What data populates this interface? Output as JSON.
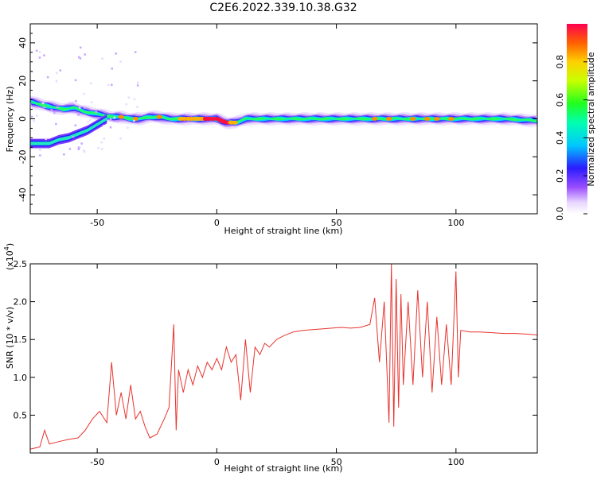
{
  "title": "C2E6.2022.339.10.38.G32",
  "chart_data": [
    {
      "type": "heatmap",
      "xlabel": "Height of straight line (km)",
      "ylabel": "Frequency (Hz)",
      "xlim": [
        -78,
        134
      ],
      "ylim": [
        -50,
        50
      ],
      "xticks": [
        -50,
        0,
        50,
        100
      ],
      "yticks": [
        -40,
        -20,
        0,
        20,
        40
      ],
      "colorbar": {
        "label": "Normalized spectral amplitude",
        "range": [
          0,
          1
        ],
        "ticks": [
          "0.0",
          "0.2",
          "0.4",
          "0.6",
          "0.8"
        ]
      },
      "ridge": {
        "x": [
          -78,
          -72,
          -68,
          -64,
          -60,
          -56,
          -52,
          -48,
          -44,
          -40,
          -36,
          -32,
          -28,
          -24,
          -20,
          -16,
          -12,
          -8,
          -4,
          0,
          4,
          8,
          12,
          16,
          20,
          30,
          40,
          50,
          60,
          65,
          70,
          75,
          80,
          85,
          90,
          95,
          100,
          110,
          120,
          134
        ],
        "y": [
          9,
          7,
          6,
          5,
          6,
          4,
          3,
          2,
          1,
          1,
          0,
          0,
          1,
          1,
          0,
          0,
          0,
          0,
          0,
          0,
          -2,
          -2,
          0,
          0,
          0,
          0,
          0,
          0,
          0,
          0,
          0,
          0,
          0,
          0,
          0,
          0,
          0,
          0,
          0,
          -1
        ]
      },
      "lower_branch": {
        "x": [
          -78,
          -70,
          -66,
          -62,
          -58,
          -54,
          -50,
          -46
        ],
        "y": [
          -13,
          -13,
          -11,
          -10,
          -8,
          -6,
          -3,
          0
        ]
      }
    },
    {
      "type": "line",
      "xlabel": "Height of straight line (km)",
      "ylabel": "SNR (10 * v/v)",
      "y_scale_label": "(x10",
      "y_scale_exp": "4",
      "xlim": [
        -78,
        134
      ],
      "ylim": [
        0,
        2.5
      ],
      "xticks": [
        -50,
        0,
        50,
        100
      ],
      "yticks": [
        0.5,
        1.0,
        1.5,
        2.0,
        2.5
      ],
      "series": [
        {
          "color": "#e8342f",
          "x": [
            -78,
            -74,
            -72,
            -70,
            -66,
            -62,
            -58,
            -55,
            -52,
            -49,
            -46,
            -44,
            -42,
            -40,
            -38,
            -36,
            -34,
            -32,
            -30,
            -28,
            -25,
            -22,
            -20,
            -18,
            -17,
            -16,
            -14,
            -12,
            -10,
            -8,
            -6,
            -4,
            -2,
            0,
            2,
            4,
            6,
            8,
            10,
            12,
            14,
            16,
            18,
            20,
            22,
            25,
            28,
            32,
            36,
            40,
            44,
            48,
            52,
            56,
            60,
            64,
            66,
            68,
            70,
            72,
            73,
            74,
            75,
            76,
            77,
            78,
            80,
            82,
            84,
            86,
            88,
            90,
            92,
            94,
            96,
            98,
            100,
            101,
            102,
            106,
            110,
            115,
            120,
            125,
            130,
            134
          ],
          "y": [
            0.05,
            0.08,
            0.3,
            0.12,
            0.15,
            0.18,
            0.2,
            0.3,
            0.45,
            0.55,
            0.4,
            1.2,
            0.5,
            0.8,
            0.45,
            0.9,
            0.45,
            0.55,
            0.35,
            0.2,
            0.25,
            0.45,
            0.6,
            1.7,
            0.3,
            1.1,
            0.8,
            1.1,
            0.9,
            1.15,
            1.0,
            1.2,
            1.1,
            1.25,
            1.1,
            1.4,
            1.2,
            1.3,
            0.7,
            1.5,
            0.8,
            1.4,
            1.3,
            1.45,
            1.4,
            1.5,
            1.55,
            1.6,
            1.62,
            1.63,
            1.64,
            1.65,
            1.66,
            1.65,
            1.66,
            1.7,
            2.05,
            1.2,
            2.0,
            0.4,
            2.5,
            0.35,
            2.3,
            0.6,
            2.1,
            0.9,
            2.0,
            0.9,
            2.15,
            1.0,
            2.0,
            0.8,
            1.8,
            0.9,
            1.7,
            0.9,
            2.4,
            1.0,
            1.62,
            1.6,
            1.6,
            1.59,
            1.58,
            1.58,
            1.57,
            1.56
          ]
        }
      ]
    }
  ]
}
